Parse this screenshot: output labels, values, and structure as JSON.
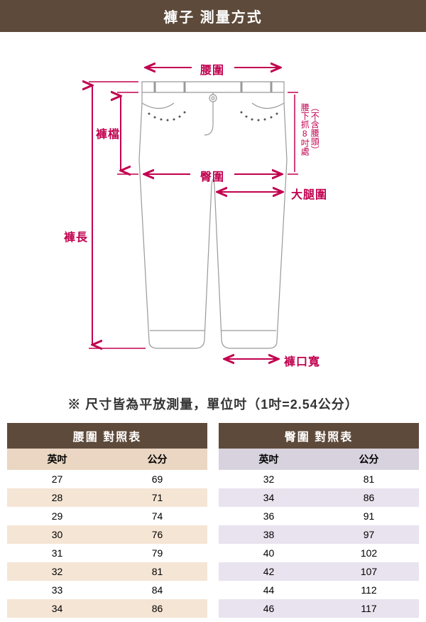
{
  "colors": {
    "header_bg": "#5e4a3a",
    "accent": "#c1004f",
    "pants_stroke": "#999999",
    "table_header_bg": "#5e4a3a",
    "table_sub_bg_waist": "#ead6c2",
    "table_alt_bg_waist": "#f5e5d5",
    "table_sub_bg_hip": "#d8d2de",
    "table_alt_bg_hip": "#e8e3ee",
    "text": "#333333"
  },
  "header_title": "褲子 測量方式",
  "note_text": "※ 尺寸皆為平放測量，單位吋（1吋=2.54公分）",
  "labels": {
    "waist": "腰圍",
    "rise": "褲檔",
    "hip": "臀圍",
    "thigh": "大腿圍",
    "length": "褲長",
    "hem": "褲口寬",
    "side_note1": "腰下抓8吋處",
    "side_note2": "（不含腰頭）"
  },
  "tables": {
    "waist": {
      "title": "腰圍 對照表",
      "col_in": "英吋",
      "col_cm": "公分",
      "rows": [
        {
          "in": "27",
          "cm": "69"
        },
        {
          "in": "28",
          "cm": "71"
        },
        {
          "in": "29",
          "cm": "74"
        },
        {
          "in": "30",
          "cm": "76"
        },
        {
          "in": "31",
          "cm": "79"
        },
        {
          "in": "32",
          "cm": "81"
        },
        {
          "in": "33",
          "cm": "84"
        },
        {
          "in": "34",
          "cm": "86"
        }
      ]
    },
    "hip": {
      "title": "臀圍 對照表",
      "col_in": "英吋",
      "col_cm": "公分",
      "rows": [
        {
          "in": "32",
          "cm": "81"
        },
        {
          "in": "34",
          "cm": "86"
        },
        {
          "in": "36",
          "cm": "91"
        },
        {
          "in": "38",
          "cm": "97"
        },
        {
          "in": "40",
          "cm": "102"
        },
        {
          "in": "42",
          "cm": "107"
        },
        {
          "in": "44",
          "cm": "112"
        },
        {
          "in": "46",
          "cm": "117"
        }
      ]
    }
  },
  "diagram": {
    "accent_stroke_width": 2,
    "pants_stroke_width": 1.2,
    "arrow_size": 6
  }
}
